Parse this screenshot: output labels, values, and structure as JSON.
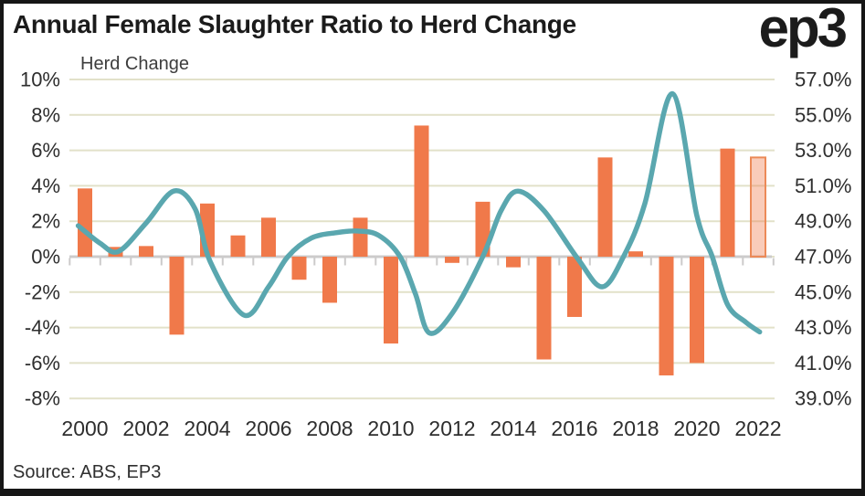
{
  "header": {
    "title": "Annual Female Slaughter Ratio to Herd Change",
    "logo": "ep3"
  },
  "chart": {
    "left_axis_title": "Herd Change",
    "left_axis_labels": [
      "10%",
      "8%",
      "6%",
      "4%",
      "2%",
      "0%",
      "-2%",
      "-4%",
      "-6%",
      "-8%"
    ],
    "right_axis_labels": [
      "57.0%",
      "55.0%",
      "53.0%",
      "51.0%",
      "49.0%",
      "47.0%",
      "45.0%",
      "43.0%",
      "41.0%",
      "39.0%"
    ],
    "x_axis_labels": [
      "2000",
      "2002",
      "2004",
      "2006",
      "2008",
      "2010",
      "2012",
      "2014",
      "2016",
      "2018",
      "2020",
      "2022"
    ],
    "colors": {
      "bar": "#F0794A",
      "bar_forecast_fill": "#F0794A",
      "bar_forecast_border": "#EC8A58",
      "line": "#5AA7AF",
      "grid": "#E2E1C9",
      "axis": "#CCCBCB",
      "tick_text": "#2e2e2e",
      "title_text": "#1b1b1b"
    }
  },
  "chart_data": {
    "type": "combo",
    "title": "Annual Female Slaughter Ratio to Herd Change",
    "categories": [
      2000,
      2001,
      2002,
      2003,
      2004,
      2005,
      2006,
      2007,
      2008,
      2009,
      2010,
      2011,
      2012,
      2013,
      2014,
      2015,
      2016,
      2017,
      2018,
      2019,
      2020,
      2021,
      2022
    ],
    "series": [
      {
        "name": "Herd Change",
        "type": "bar",
        "axis": "left",
        "unit": "%",
        "values": [
          3.85,
          0.55,
          0.6,
          -4.4,
          3.0,
          1.2,
          2.2,
          -1.3,
          -2.6,
          2.2,
          -4.9,
          7.4,
          -0.35,
          3.1,
          -0.6,
          -5.8,
          -3.4,
          5.6,
          0.3,
          -6.7,
          -6.0,
          6.1,
          5.6
        ],
        "last_value_is_forecast_style": true
      },
      {
        "name": "Female Slaughter Ratio",
        "type": "line",
        "axis": "right",
        "unit": "%",
        "points": [
          [
            1999.78,
            48.75
          ],
          [
            2000.5,
            47.75
          ],
          [
            2001.1,
            47.3
          ],
          [
            2002.0,
            48.9
          ],
          [
            2002.9,
            50.7
          ],
          [
            2003.6,
            49.7
          ],
          [
            2004.1,
            46.7
          ],
          [
            2005.2,
            43.7
          ],
          [
            2006.0,
            45.3
          ],
          [
            2006.63,
            47.0
          ],
          [
            2007.4,
            48.05
          ],
          [
            2008.2,
            48.35
          ],
          [
            2008.9,
            48.45
          ],
          [
            2009.6,
            48.2
          ],
          [
            2010.3,
            47.0
          ],
          [
            2010.8,
            44.9
          ],
          [
            2011.25,
            42.7
          ],
          [
            2012.0,
            43.8
          ],
          [
            2013.0,
            47.0
          ],
          [
            2013.6,
            49.6
          ],
          [
            2014.15,
            50.7
          ],
          [
            2015.0,
            49.6
          ],
          [
            2016.1,
            46.9
          ],
          [
            2016.9,
            45.3
          ],
          [
            2017.6,
            47.0
          ],
          [
            2018.3,
            50.0
          ],
          [
            2019.2,
            56.2
          ],
          [
            2020.0,
            49.3
          ],
          [
            2020.5,
            47.0
          ],
          [
            2021.0,
            44.3
          ],
          [
            2021.6,
            43.3
          ],
          [
            2022.05,
            42.75
          ]
        ]
      }
    ],
    "left_axis": {
      "label": "Herd Change",
      "min": -8,
      "max": 10,
      "tick_step": 2,
      "unit": "%"
    },
    "right_axis": {
      "min": 39,
      "max": 57,
      "tick_step": 2,
      "unit": "%"
    },
    "x_axis": {
      "min": 2000,
      "max": 2022,
      "label_step": 2
    },
    "grid": true,
    "legend_position": "none"
  },
  "footer": {
    "source": "Source: ABS, EP3"
  }
}
